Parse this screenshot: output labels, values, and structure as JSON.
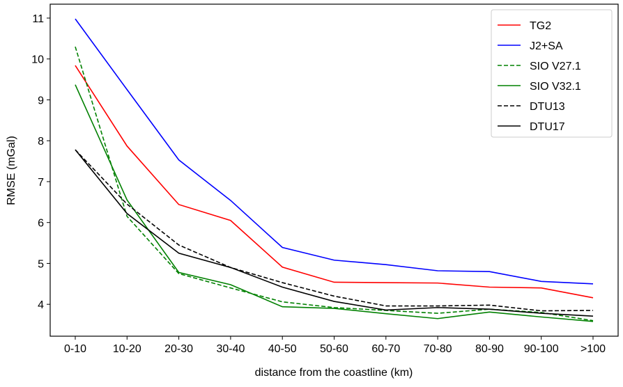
{
  "chart_data": {
    "type": "line",
    "title": "",
    "xlabel": "distance from the coastline (km)",
    "ylabel": "RMSE (mGal)",
    "categories": [
      "0-10",
      "10-20",
      "20-30",
      "30-40",
      "40-50",
      "50-60",
      "60-70",
      "70-80",
      "80-90",
      "90-100",
      ">100"
    ],
    "ylim": [
      3.22,
      11.34
    ],
    "yticks": [
      4,
      5,
      6,
      7,
      8,
      9,
      10,
      11
    ],
    "grid": false,
    "legend_position": "top-right",
    "series": [
      {
        "name": "TG2",
        "color": "#ff0000",
        "dash": false,
        "values": [
          9.84,
          7.87,
          6.44,
          6.05,
          4.91,
          4.54,
          4.53,
          4.52,
          4.42,
          4.4,
          4.16
        ]
      },
      {
        "name": "J2+SA",
        "color": "#0000ff",
        "dash": false,
        "values": [
          10.98,
          9.25,
          7.53,
          6.54,
          5.39,
          5.08,
          4.97,
          4.82,
          4.8,
          4.56,
          4.5
        ]
      },
      {
        "name": "SIO V27.1",
        "color": "#008000",
        "dash": true,
        "values": [
          10.3,
          6.15,
          4.75,
          4.4,
          4.06,
          3.92,
          3.85,
          3.78,
          3.88,
          3.8,
          3.6
        ]
      },
      {
        "name": "SIO V32.1",
        "color": "#008000",
        "dash": false,
        "values": [
          9.37,
          6.55,
          4.78,
          4.48,
          3.94,
          3.9,
          3.77,
          3.65,
          3.81,
          3.69,
          3.58
        ]
      },
      {
        "name": "DTU13",
        "color": "#000000",
        "dash": true,
        "values": [
          7.78,
          6.45,
          5.45,
          4.9,
          4.53,
          4.2,
          3.96,
          3.96,
          3.98,
          3.84,
          3.85
        ]
      },
      {
        "name": "DTU17",
        "color": "#000000",
        "dash": false,
        "values": [
          7.78,
          6.22,
          5.25,
          4.9,
          4.42,
          4.07,
          3.86,
          3.92,
          3.88,
          3.78,
          3.71
        ]
      }
    ]
  }
}
